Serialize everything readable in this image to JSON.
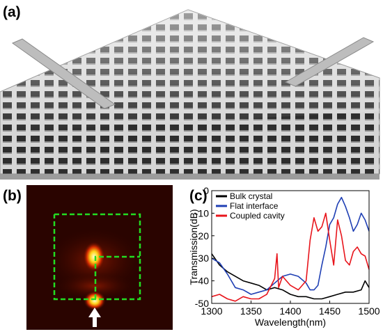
{
  "figure": {
    "panel_labels": {
      "a": "(a)",
      "b": "(b)",
      "c": "(c)"
    }
  },
  "panel_a": {
    "description_icon": "photonic-crystal-lattice-render",
    "colors": {
      "frame_top": "#d4d4d4",
      "frame_side": "#9a9a9a",
      "hole": "#2d2d2d",
      "waveguide": "#b0b0b0"
    }
  },
  "panel_b": {
    "description_icon": "field-intensity-map",
    "colors": {
      "background": "#2a0400",
      "hot": "#ffff66",
      "dashed_box": "#22dd22",
      "arrow": "#ffffff"
    }
  },
  "chart_data": {
    "type": "line",
    "title": "",
    "xlabel": "Wavelength(nm)",
    "ylabel": "Transmission(dB)",
    "xlim": [
      1300,
      1500
    ],
    "ylim": [
      -50,
      0
    ],
    "xticks": [
      1300,
      1350,
      1400,
      1450,
      1500
    ],
    "yticks": [
      -50,
      -40,
      -30,
      -20,
      -10,
      0
    ],
    "legend_position": "top-left",
    "grid": false,
    "series": [
      {
        "name": "Bulk crystal",
        "color": "#000000",
        "x": [
          1300,
          1310,
          1320,
          1330,
          1340,
          1350,
          1360,
          1370,
          1380,
          1390,
          1400,
          1410,
          1420,
          1430,
          1440,
          1450,
          1460,
          1470,
          1480,
          1490,
          1495,
          1500
        ],
        "y": [
          -28,
          -33,
          -36,
          -38,
          -40,
          -41,
          -42,
          -44,
          -43,
          -44,
          -46,
          -47,
          -47,
          -48,
          -48,
          -47,
          -46,
          -45,
          -45,
          -44,
          -40,
          -43
        ]
      },
      {
        "name": "Flat interface",
        "color": "#1f3fb4",
        "x": [
          1300,
          1310,
          1320,
          1330,
          1340,
          1350,
          1360,
          1370,
          1380,
          1390,
          1400,
          1410,
          1420,
          1425,
          1430,
          1435,
          1440,
          1445,
          1450,
          1455,
          1460,
          1465,
          1470,
          1475,
          1480,
          1485,
          1490,
          1495,
          1500
        ],
        "y": [
          -30,
          -32,
          -37,
          -43,
          -44,
          -46,
          -45,
          -44,
          -41,
          -38,
          -37,
          -38,
          -41,
          -44,
          -44,
          -42,
          -33,
          -25,
          -15,
          -12,
          -6,
          -3,
          -7,
          -12,
          -18,
          -15,
          -10,
          -13,
          -18
        ]
      },
      {
        "name": "Coupled cavity",
        "color": "#e8141b",
        "x": [
          1300,
          1310,
          1320,
          1330,
          1340,
          1350,
          1360,
          1370,
          1380,
          1383,
          1385,
          1390,
          1400,
          1410,
          1420,
          1425,
          1430,
          1435,
          1440,
          1445,
          1450,
          1455,
          1460,
          1465,
          1470,
          1475,
          1480,
          1485,
          1490,
          1495,
          1500
        ],
        "y": [
          -47,
          -46,
          -48,
          -49,
          -47,
          -48,
          -48,
          -46,
          -39,
          -28,
          -43,
          -38,
          -42,
          -44,
          -40,
          -22,
          -12,
          -18,
          -16,
          -10,
          -22,
          -33,
          -13,
          -20,
          -31,
          -33,
          -27,
          -25,
          -28,
          -29,
          -35
        ]
      }
    ]
  }
}
